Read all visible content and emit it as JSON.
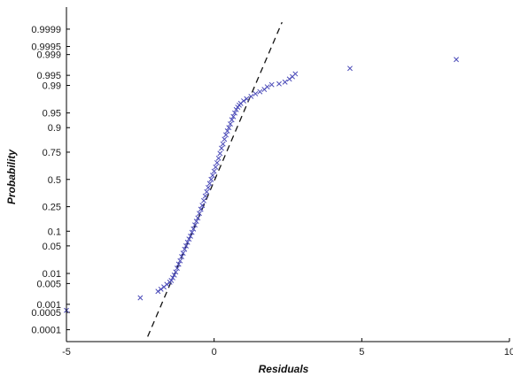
{
  "chart_data": {
    "type": "scatter",
    "title": "",
    "xlabel": "Residuals",
    "ylabel": "Probability",
    "xlim": [
      -5,
      10
    ],
    "x_ticks": [
      {
        "value": -5,
        "label": "-5"
      },
      {
        "value": 0,
        "label": "0"
      },
      {
        "value": 5,
        "label": "5"
      },
      {
        "value": 10,
        "label": "10"
      }
    ],
    "y_scale": "normal-probability",
    "y_ticks": [
      {
        "value": 0.9999,
        "label": "0.9999"
      },
      {
        "value": 0.9995,
        "label": "0.9995"
      },
      {
        "value": 0.999,
        "label": "0.999"
      },
      {
        "value": 0.995,
        "label": "0.995"
      },
      {
        "value": 0.99,
        "label": "0.99"
      },
      {
        "value": 0.95,
        "label": "0.95"
      },
      {
        "value": 0.9,
        "label": "0.9"
      },
      {
        "value": 0.75,
        "label": "0.75"
      },
      {
        "value": 0.5,
        "label": "0.5"
      },
      {
        "value": 0.25,
        "label": "0.25"
      },
      {
        "value": 0.1,
        "label": "0.1"
      },
      {
        "value": 0.05,
        "label": "0.05"
      },
      {
        "value": 0.01,
        "label": "0.01"
      },
      {
        "value": 0.005,
        "label": "0.005"
      },
      {
        "value": 0.001,
        "label": "0.001"
      },
      {
        "value": 0.0005,
        "label": "0.0005"
      },
      {
        "value": 0.0001,
        "label": "0.0001"
      }
    ],
    "marker": "x",
    "marker_color": "#4a4ab8",
    "reference_line": {
      "style": "dashed",
      "color": "#111111",
      "points": [
        [
          -2.25,
          5e-05
        ],
        [
          2.3,
          0.99995
        ]
      ]
    },
    "series": [
      {
        "points": [
          [
            -5.0,
            0.0006
          ],
          [
            -2.5,
            0.0017
          ],
          [
            -1.9,
            0.0028
          ],
          [
            -1.8,
            0.0033
          ],
          [
            -1.7,
            0.0039
          ],
          [
            -1.6,
            0.0047
          ],
          [
            -1.5,
            0.0055
          ],
          [
            -1.45,
            0.0062
          ],
          [
            -1.4,
            0.0075
          ],
          [
            -1.35,
            0.009
          ],
          [
            -1.3,
            0.011
          ],
          [
            -1.25,
            0.014
          ],
          [
            -1.2,
            0.018
          ],
          [
            -1.15,
            0.022
          ],
          [
            -1.1,
            0.028
          ],
          [
            -1.05,
            0.034
          ],
          [
            -1.0,
            0.042
          ],
          [
            -0.95,
            0.05
          ],
          [
            -0.9,
            0.06
          ],
          [
            -0.85,
            0.07
          ],
          [
            -0.8,
            0.08
          ],
          [
            -0.75,
            0.095
          ],
          [
            -0.7,
            0.11
          ],
          [
            -0.65,
            0.13
          ],
          [
            -0.6,
            0.15
          ],
          [
            -0.55,
            0.17
          ],
          [
            -0.5,
            0.2
          ],
          [
            -0.45,
            0.23
          ],
          [
            -0.4,
            0.26
          ],
          [
            -0.35,
            0.3
          ],
          [
            -0.3,
            0.34
          ],
          [
            -0.25,
            0.38
          ],
          [
            -0.2,
            0.42
          ],
          [
            -0.15,
            0.46
          ],
          [
            -0.1,
            0.5
          ],
          [
            -0.05,
            0.54
          ],
          [
            0.0,
            0.58
          ],
          [
            0.05,
            0.62
          ],
          [
            0.1,
            0.66
          ],
          [
            0.15,
            0.7
          ],
          [
            0.2,
            0.74
          ],
          [
            0.25,
            0.78
          ],
          [
            0.3,
            0.81
          ],
          [
            0.35,
            0.84
          ],
          [
            0.4,
            0.865
          ],
          [
            0.45,
            0.885
          ],
          [
            0.5,
            0.9
          ],
          [
            0.55,
            0.915
          ],
          [
            0.6,
            0.93
          ],
          [
            0.65,
            0.94
          ],
          [
            0.7,
            0.95
          ],
          [
            0.75,
            0.958
          ],
          [
            0.8,
            0.963
          ],
          [
            0.85,
            0.967
          ],
          [
            0.9,
            0.97
          ],
          [
            1.0,
            0.974
          ],
          [
            1.1,
            0.977
          ],
          [
            1.25,
            0.98
          ],
          [
            1.4,
            0.983
          ],
          [
            1.55,
            0.985
          ],
          [
            1.7,
            0.987
          ],
          [
            1.8,
            0.989
          ],
          [
            1.95,
            0.9905
          ],
          [
            2.2,
            0.991
          ],
          [
            2.4,
            0.992
          ],
          [
            2.55,
            0.9935
          ],
          [
            2.65,
            0.9945
          ],
          [
            2.75,
            0.9955
          ],
          [
            4.6,
            0.997
          ],
          [
            8.2,
            0.9985
          ]
        ]
      }
    ]
  }
}
